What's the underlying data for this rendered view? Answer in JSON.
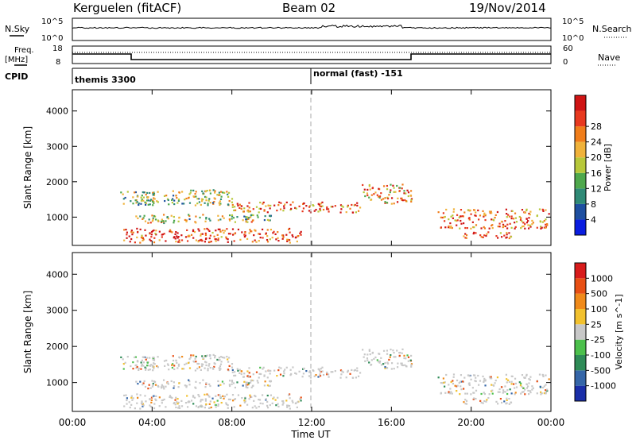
{
  "header": {
    "station": "Kerguelen (fitACF)",
    "beam": "Beam 02",
    "date": "19/Nov/2014"
  },
  "sky_panel": {
    "left_label": "N.Sky",
    "right_label": "N.Search",
    "left_ticks": [
      "10^5",
      "10^0"
    ],
    "right_ticks": [
      "10^5",
      "10^0"
    ]
  },
  "freq_panel": {
    "left_label_1": "Freq.",
    "left_label_2": "[MHz]",
    "right_label": "Nave",
    "left_ticks": [
      "18",
      "8"
    ],
    "right_ticks": [
      "60",
      "0"
    ]
  },
  "cpid": {
    "label": "CPID",
    "mode_1": "themis 3300",
    "mode_2": "normal (fast) -151"
  },
  "chart_data": [
    {
      "type": "heatmap",
      "title": "Power",
      "ylabel": "Slant Range [km]",
      "ylim": [
        200,
        4600
      ],
      "yticks": [
        "1000",
        "2000",
        "3000",
        "4000"
      ],
      "colorbar": {
        "label": "Power [dB]",
        "ticks": [
          "4",
          "8",
          "12",
          "16",
          "20",
          "24",
          "28"
        ],
        "colors": [
          "#0a1de0",
          "#1e4fa0",
          "#2f8a76",
          "#4ea84c",
          "#b7c83a",
          "#f0b23a",
          "#f07d1a",
          "#e8391f",
          "#cf1414"
        ]
      },
      "bands": [
        {
          "t": [
            2.4,
            4.2
          ],
          "r": [
            1400,
            1750
          ],
          "level": 0.5
        },
        {
          "t": [
            3.0,
            8.0
          ],
          "r": [
            1350,
            1800
          ],
          "level": 0.45
        },
        {
          "t": [
            8.0,
            14.5
          ],
          "r": [
            1150,
            1450
          ],
          "level": 0.75
        },
        {
          "t": [
            14.5,
            17.0
          ],
          "r": [
            1400,
            1950
          ],
          "level": 0.7
        },
        {
          "t": [
            3.0,
            10.0
          ],
          "r": [
            850,
            1100
          ],
          "level": 0.5
        },
        {
          "t": [
            2.5,
            11.5
          ],
          "r": [
            300,
            700
          ],
          "level": 0.85
        },
        {
          "t": [
            18.3,
            23.9
          ],
          "r": [
            700,
            1250
          ],
          "level": 0.75
        },
        {
          "t": [
            19.5,
            22.0
          ],
          "r": [
            400,
            600
          ],
          "level": 0.8
        }
      ]
    },
    {
      "type": "heatmap",
      "title": "Velocity",
      "ylabel": "Slant Range [km]",
      "ylim": [
        200,
        4600
      ],
      "yticks": [
        "1000",
        "2000",
        "3000",
        "4000"
      ],
      "colorbar": {
        "label": "Velocity [m s^-1]",
        "ticks": [
          "1000",
          "500",
          "100",
          "25",
          "-25",
          "-100",
          "-500",
          "-1000"
        ],
        "colors": [
          "#1a2ea8",
          "#3566a8",
          "#2e8b57",
          "#4cc04c",
          "#c8c8c8",
          "#f2c12e",
          "#f08a1a",
          "#e84f14",
          "#d81b1b"
        ]
      }
    }
  ],
  "xaxis": {
    "label": "Time UT",
    "ticks": [
      "00:00",
      "04:00",
      "08:00",
      "12:00",
      "16:00",
      "20:00",
      "00:00"
    ]
  }
}
